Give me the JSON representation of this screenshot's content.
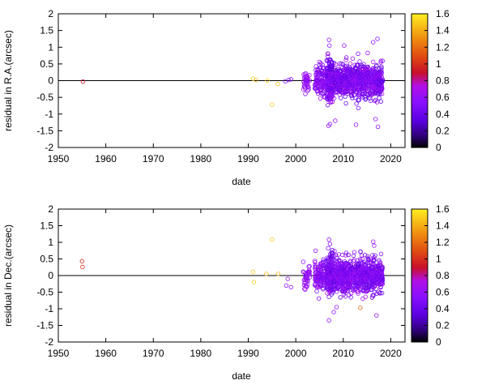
{
  "chart_data": [
    {
      "type": "scatter",
      "xlabel": "date",
      "ylabel": "residual in R.A.(arcsec)",
      "xlim": [
        1950,
        2023
      ],
      "ylim": [
        -2,
        2
      ],
      "xticks": [
        "1950",
        "1960",
        "1970",
        "1980",
        "1990",
        "2000",
        "2010",
        "2020"
      ],
      "yticks": [
        "-2",
        "-1.5",
        "-1",
        "-0.5",
        "0",
        "0.5",
        "1",
        "1.5",
        "2"
      ],
      "zero_line": true,
      "grid": false,
      "colorbar": {
        "range": [
          0,
          1.6
        ],
        "ticks": [
          "0",
          "0.2",
          "0.4",
          "0.6",
          "0.8",
          "1",
          "1.2",
          "1.4",
          "1.6"
        ],
        "palette": "black-purple-red-yellow"
      },
      "sparse_points": [
        {
          "x": 1955.2,
          "y": -0.03,
          "c": 0.9
        },
        {
          "x": 1991.0,
          "y": 0.06,
          "c": 1.5
        },
        {
          "x": 1991.6,
          "y": 0.02,
          "c": 1.45
        },
        {
          "x": 1994.0,
          "y": 0.0,
          "c": 1.5
        },
        {
          "x": 1995.0,
          "y": -0.72,
          "c": 1.5
        },
        {
          "x": 1996.2,
          "y": -0.1,
          "c": 1.45
        },
        {
          "x": 1997.8,
          "y": -0.02,
          "c": 0.5
        },
        {
          "x": 1998.5,
          "y": 0.02,
          "c": 0.55
        },
        {
          "x": 1999.0,
          "y": 0.04,
          "c": 0.5
        }
      ],
      "clusters": [
        {
          "x": [
            2001.5,
            2003.0
          ],
          "center": 0.0,
          "spread": 0.3,
          "count": 40,
          "c": [
            0.5,
            0.7
          ]
        },
        {
          "x": [
            2004.0,
            2006.2
          ],
          "center": 0.0,
          "spread": 0.4,
          "count": 120,
          "c": [
            0.4,
            0.7
          ]
        },
        {
          "x": [
            2006.5,
            2007.8
          ],
          "center": 0.0,
          "spread": 0.55,
          "count": 220,
          "c": [
            0.3,
            0.7
          ]
        },
        {
          "x": [
            2008.0,
            2013.0
          ],
          "center": 0.0,
          "spread": 0.45,
          "count": 420,
          "c": [
            0.3,
            0.7
          ]
        },
        {
          "x": [
            2013.0,
            2018.3
          ],
          "center": 0.0,
          "spread": 0.45,
          "count": 420,
          "c": [
            0.3,
            0.7
          ]
        }
      ],
      "outliers": [
        {
          "x": 2007.0,
          "y": 1.22,
          "c": 0.6
        },
        {
          "x": 2007.1,
          "y": 1.05,
          "c": 0.6
        },
        {
          "x": 2007.2,
          "y": -1.3,
          "c": 0.6
        },
        {
          "x": 2006.9,
          "y": -1.35,
          "c": 0.6
        },
        {
          "x": 2008.3,
          "y": -1.2,
          "c": 0.6
        },
        {
          "x": 2010.2,
          "y": 1.05,
          "c": 0.6
        },
        {
          "x": 2012.7,
          "y": -1.32,
          "c": 0.6
        },
        {
          "x": 2016.3,
          "y": 1.15,
          "c": 0.6
        },
        {
          "x": 2017.2,
          "y": 1.25,
          "c": 0.6
        },
        {
          "x": 2017.3,
          "y": -1.38,
          "c": 0.6
        },
        {
          "x": 2016.8,
          "y": -1.15,
          "c": 0.6
        }
      ]
    },
    {
      "type": "scatter",
      "xlabel": "date",
      "ylabel": "residual in Dec.(arcsec)",
      "xlim": [
        1950,
        2023
      ],
      "ylim": [
        -2,
        2
      ],
      "xticks": [
        "1950",
        "1960",
        "1970",
        "1980",
        "1990",
        "2000",
        "2010",
        "2020"
      ],
      "yticks": [
        "-2",
        "-1.5",
        "-1",
        "-0.5",
        "0",
        "0.5",
        "1",
        "1.5",
        "2"
      ],
      "zero_line": true,
      "grid": false,
      "colorbar": {
        "range": [
          0,
          1.6
        ],
        "ticks": [
          "0",
          "0.2",
          "0.4",
          "0.6",
          "0.8",
          "1",
          "1.2",
          "1.4",
          "1.6"
        ],
        "palette": "black-purple-red-yellow"
      },
      "sparse_points": [
        {
          "x": 1955.0,
          "y": 0.43,
          "c": 1.0
        },
        {
          "x": 1955.1,
          "y": 0.26,
          "c": 1.0
        },
        {
          "x": 1991.0,
          "y": 0.11,
          "c": 1.5
        },
        {
          "x": 1991.2,
          "y": -0.2,
          "c": 1.5
        },
        {
          "x": 1993.8,
          "y": 0.05,
          "c": 1.45
        },
        {
          "x": 1995.0,
          "y": 1.08,
          "c": 1.5
        },
        {
          "x": 1996.3,
          "y": 0.05,
          "c": 1.45
        },
        {
          "x": 1998.0,
          "y": -0.3,
          "c": 0.6
        },
        {
          "x": 1999.0,
          "y": -0.35,
          "c": 0.6
        },
        {
          "x": 1998.3,
          "y": -0.1,
          "c": 0.6
        },
        {
          "x": 2013.6,
          "y": -0.97,
          "c": 1.2
        }
      ],
      "clusters": [
        {
          "x": [
            2001.5,
            2003.0
          ],
          "center": 0.0,
          "spread": 0.3,
          "count": 40,
          "c": [
            0.5,
            0.7
          ]
        },
        {
          "x": [
            2004.0,
            2006.2
          ],
          "center": 0.0,
          "spread": 0.4,
          "count": 120,
          "c": [
            0.4,
            0.7
          ]
        },
        {
          "x": [
            2006.5,
            2007.8
          ],
          "center": 0.0,
          "spread": 0.55,
          "count": 220,
          "c": [
            0.3,
            0.7
          ]
        },
        {
          "x": [
            2008.0,
            2013.0
          ],
          "center": 0.0,
          "spread": 0.45,
          "count": 420,
          "c": [
            0.3,
            0.7
          ]
        },
        {
          "x": [
            2013.0,
            2018.3
          ],
          "center": 0.0,
          "spread": 0.45,
          "count": 420,
          "c": [
            0.3,
            0.7
          ]
        }
      ],
      "outliers": [
        {
          "x": 2007.0,
          "y": 1.08,
          "c": 0.6
        },
        {
          "x": 2007.2,
          "y": 0.95,
          "c": 0.6
        },
        {
          "x": 2007.0,
          "y": -1.35,
          "c": 0.6
        },
        {
          "x": 2008.0,
          "y": -1.1,
          "c": 0.6
        },
        {
          "x": 2008.6,
          "y": -0.95,
          "c": 0.6
        },
        {
          "x": 2016.3,
          "y": 1.02,
          "c": 0.6
        },
        {
          "x": 2016.5,
          "y": 0.9,
          "c": 0.6
        },
        {
          "x": 2017.0,
          "y": -1.2,
          "c": 0.6
        }
      ]
    }
  ]
}
